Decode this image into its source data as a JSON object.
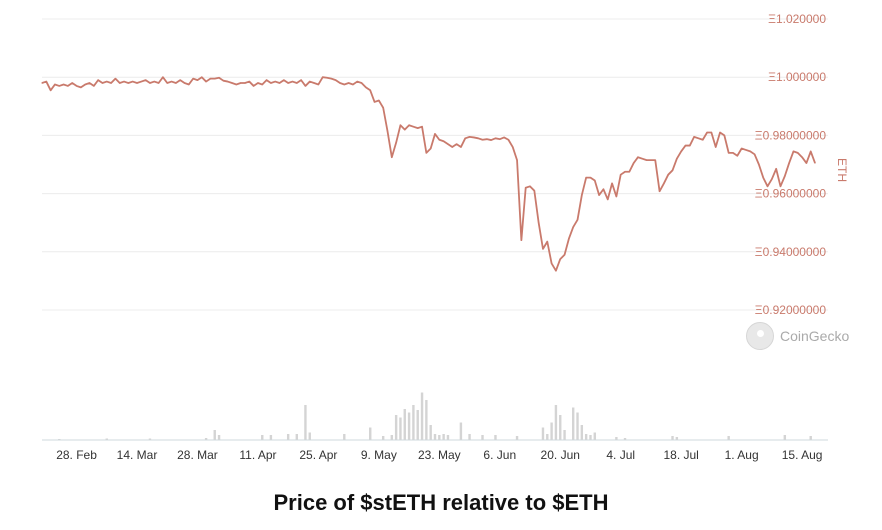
{
  "caption": "Price of $stETH relative to $ETH",
  "watermark": {
    "text": "CoinGecko",
    "icon": "coingecko-logo-icon"
  },
  "colors": {
    "line": "#c97a6c",
    "axis_label": "#c97a6c",
    "volume": "#d4d4d4",
    "grid": "#ececec",
    "axis": "#cfd8dc"
  },
  "chart_data": {
    "type": "line",
    "ylabel": "ETH",
    "ylim": [
      0.92,
      1.02
    ],
    "y_tick_values": [
      0.92,
      0.94,
      0.96,
      0.98,
      1.0,
      1.02
    ],
    "y_tick_labels": [
      "Ξ0.92000000",
      "Ξ0.94000000",
      "Ξ0.96000000",
      "Ξ0.98000000",
      "Ξ1.000000",
      "Ξ1.020000"
    ],
    "x_range": [
      "2022-02-20",
      "2022-08-21"
    ],
    "x_ticks": [
      "28. Feb",
      "14. Mar",
      "28. Mar",
      "11. Apr",
      "25. Apr",
      "9. May",
      "23. May",
      "6. Jun",
      "20. Jun",
      "4. Jul",
      "18. Jul",
      "1. Aug",
      "15. Aug"
    ],
    "grid": true,
    "series": [
      {
        "values": [
          [
            "2022-02-20",
            0.998
          ],
          [
            "2022-02-21",
            0.9985
          ],
          [
            "2022-02-22",
            0.9955
          ],
          [
            "2022-02-23",
            0.9975
          ],
          [
            "2022-02-24",
            0.997
          ],
          [
            "2022-02-25",
            0.9975
          ],
          [
            "2022-02-26",
            0.997
          ],
          [
            "2022-02-27",
            0.998
          ],
          [
            "2022-02-28",
            0.997
          ],
          [
            "2022-03-01",
            0.9965
          ],
          [
            "2022-03-02",
            0.9975
          ],
          [
            "2022-03-03",
            0.998
          ],
          [
            "2022-03-04",
            0.997
          ],
          [
            "2022-03-05",
            0.999
          ],
          [
            "2022-03-06",
            0.998
          ],
          [
            "2022-03-07",
            0.9985
          ],
          [
            "2022-03-08",
            0.998
          ],
          [
            "2022-03-09",
            0.9995
          ],
          [
            "2022-03-10",
            0.998
          ],
          [
            "2022-03-11",
            0.9985
          ],
          [
            "2022-03-12",
            0.998
          ],
          [
            "2022-03-13",
            0.9985
          ],
          [
            "2022-03-14",
            0.998
          ],
          [
            "2022-03-15",
            0.9985
          ],
          [
            "2022-03-16",
            0.999
          ],
          [
            "2022-03-17",
            0.998
          ],
          [
            "2022-03-18",
            0.9985
          ],
          [
            "2022-03-19",
            0.998
          ],
          [
            "2022-03-20",
            1.0
          ],
          [
            "2022-03-21",
            0.998
          ],
          [
            "2022-03-22",
            0.9985
          ],
          [
            "2022-03-23",
            0.998
          ],
          [
            "2022-03-24",
            0.999
          ],
          [
            "2022-03-25",
            0.998
          ],
          [
            "2022-03-26",
            0.9975
          ],
          [
            "2022-03-27",
            0.9995
          ],
          [
            "2022-03-28",
            0.999
          ],
          [
            "2022-03-29",
            1.0
          ],
          [
            "2022-03-30",
            0.9985
          ],
          [
            "2022-03-31",
            0.9995
          ],
          [
            "2022-04-01",
            0.9995
          ],
          [
            "2022-04-02",
            0.9998
          ],
          [
            "2022-04-03",
            0.9988
          ],
          [
            "2022-04-04",
            0.9985
          ],
          [
            "2022-04-05",
            0.998
          ],
          [
            "2022-04-06",
            0.9975
          ],
          [
            "2022-04-07",
            0.998
          ],
          [
            "2022-04-08",
            0.998
          ],
          [
            "2022-04-09",
            0.9985
          ],
          [
            "2022-04-10",
            0.997
          ],
          [
            "2022-04-11",
            0.998
          ],
          [
            "2022-04-12",
            0.9975
          ],
          [
            "2022-04-13",
            0.999
          ],
          [
            "2022-04-14",
            0.998
          ],
          [
            "2022-04-15",
            0.9985
          ],
          [
            "2022-04-16",
            0.998
          ],
          [
            "2022-04-17",
            0.999
          ],
          [
            "2022-04-18",
            0.998
          ],
          [
            "2022-04-19",
            0.9985
          ],
          [
            "2022-04-20",
            0.998
          ],
          [
            "2022-04-21",
            0.999
          ],
          [
            "2022-04-22",
            0.997
          ],
          [
            "2022-04-23",
            0.9985
          ],
          [
            "2022-04-24",
            0.998
          ],
          [
            "2022-04-25",
            0.9975
          ],
          [
            "2022-04-26",
            1.0
          ],
          [
            "2022-04-27",
            0.9998
          ],
          [
            "2022-04-28",
            0.9995
          ],
          [
            "2022-04-29",
            0.999
          ],
          [
            "2022-04-30",
            0.998
          ],
          [
            "2022-05-01",
            0.9975
          ],
          [
            "2022-05-02",
            0.998
          ],
          [
            "2022-05-03",
            0.9975
          ],
          [
            "2022-05-04",
            0.9985
          ],
          [
            "2022-05-05",
            0.998
          ],
          [
            "2022-05-06",
            0.9965
          ],
          [
            "2022-05-07",
            0.9955
          ],
          [
            "2022-05-08",
            0.9915
          ],
          [
            "2022-05-09",
            0.992
          ],
          [
            "2022-05-10",
            0.9895
          ],
          [
            "2022-05-11",
            0.9815
          ],
          [
            "2022-05-12",
            0.9725
          ],
          [
            "2022-05-13",
            0.9775
          ],
          [
            "2022-05-14",
            0.9835
          ],
          [
            "2022-05-15",
            0.982
          ],
          [
            "2022-05-16",
            0.9835
          ],
          [
            "2022-05-17",
            0.983
          ],
          [
            "2022-05-18",
            0.9825
          ],
          [
            "2022-05-19",
            0.983
          ],
          [
            "2022-05-20",
            0.974
          ],
          [
            "2022-05-21",
            0.9755
          ],
          [
            "2022-05-22",
            0.9805
          ],
          [
            "2022-05-23",
            0.9785
          ],
          [
            "2022-05-24",
            0.978
          ],
          [
            "2022-05-25",
            0.977
          ],
          [
            "2022-05-26",
            0.976
          ],
          [
            "2022-05-27",
            0.977
          ],
          [
            "2022-05-28",
            0.976
          ],
          [
            "2022-05-29",
            0.979
          ],
          [
            "2022-05-30",
            0.9795
          ],
          [
            "2022-05-31",
            0.9793
          ],
          [
            "2022-06-01",
            0.979
          ],
          [
            "2022-06-02",
            0.9785
          ],
          [
            "2022-06-03",
            0.9787
          ],
          [
            "2022-06-04",
            0.9784
          ],
          [
            "2022-06-05",
            0.979
          ],
          [
            "2022-06-06",
            0.9787
          ],
          [
            "2022-06-07",
            0.9793
          ],
          [
            "2022-06-08",
            0.9785
          ],
          [
            "2022-06-09",
            0.976
          ],
          [
            "2022-06-10",
            0.9715
          ],
          [
            "2022-06-11",
            0.944
          ],
          [
            "2022-06-12",
            0.962
          ],
          [
            "2022-06-13",
            0.9625
          ],
          [
            "2022-06-14",
            0.961
          ],
          [
            "2022-06-15",
            0.95
          ],
          [
            "2022-06-16",
            0.941
          ],
          [
            "2022-06-17",
            0.9435
          ],
          [
            "2022-06-18",
            0.936
          ],
          [
            "2022-06-19",
            0.9335
          ],
          [
            "2022-06-20",
            0.9375
          ],
          [
            "2022-06-21",
            0.939
          ],
          [
            "2022-06-22",
            0.9445
          ],
          [
            "2022-06-23",
            0.9485
          ],
          [
            "2022-06-24",
            0.951
          ],
          [
            "2022-06-25",
            0.9595
          ],
          [
            "2022-06-26",
            0.9655
          ],
          [
            "2022-06-27",
            0.9655
          ],
          [
            "2022-06-28",
            0.9645
          ],
          [
            "2022-06-29",
            0.9595
          ],
          [
            "2022-06-30",
            0.9615
          ],
          [
            "2022-07-01",
            0.958
          ],
          [
            "2022-07-02",
            0.9635
          ],
          [
            "2022-07-03",
            0.959
          ],
          [
            "2022-07-04",
            0.9665
          ],
          [
            "2022-07-05",
            0.9675
          ],
          [
            "2022-07-06",
            0.9675
          ],
          [
            "2022-07-07",
            0.9705
          ],
          [
            "2022-07-08",
            0.9725
          ],
          [
            "2022-07-09",
            0.972
          ],
          [
            "2022-07-10",
            0.9715
          ],
          [
            "2022-07-11",
            0.9715
          ],
          [
            "2022-07-12",
            0.9715
          ],
          [
            "2022-07-13",
            0.9608
          ],
          [
            "2022-07-14",
            0.9635
          ],
          [
            "2022-07-15",
            0.9665
          ],
          [
            "2022-07-16",
            0.968
          ],
          [
            "2022-07-17",
            0.972
          ],
          [
            "2022-07-18",
            0.9745
          ],
          [
            "2022-07-19",
            0.9765
          ],
          [
            "2022-07-20",
            0.9765
          ],
          [
            "2022-07-21",
            0.9795
          ],
          [
            "2022-07-22",
            0.979
          ],
          [
            "2022-07-23",
            0.9785
          ],
          [
            "2022-07-24",
            0.981
          ],
          [
            "2022-07-25",
            0.981
          ],
          [
            "2022-07-26",
            0.976
          ],
          [
            "2022-07-27",
            0.981
          ],
          [
            "2022-07-28",
            0.98
          ],
          [
            "2022-07-29",
            0.974
          ],
          [
            "2022-07-30",
            0.974
          ],
          [
            "2022-07-31",
            0.973
          ],
          [
            "2022-08-01",
            0.9755
          ],
          [
            "2022-08-02",
            0.975
          ],
          [
            "2022-08-03",
            0.9745
          ],
          [
            "2022-08-04",
            0.9735
          ],
          [
            "2022-08-05",
            0.97
          ],
          [
            "2022-08-06",
            0.9655
          ],
          [
            "2022-08-07",
            0.9625
          ],
          [
            "2022-08-08",
            0.965
          ],
          [
            "2022-08-09",
            0.9685
          ],
          [
            "2022-08-10",
            0.9625
          ],
          [
            "2022-08-11",
            0.966
          ],
          [
            "2022-08-12",
            0.9705
          ],
          [
            "2022-08-13",
            0.9745
          ],
          [
            "2022-08-14",
            0.974
          ],
          [
            "2022-08-15",
            0.9725
          ],
          [
            "2022-08-16",
            0.9705
          ],
          [
            "2022-08-17",
            0.9745
          ],
          [
            "2022-08-18",
            0.9705
          ]
        ]
      }
    ],
    "volume_bars": {
      "description_of_values": "relative trading volume, arbitrary units (no volume axis printed)",
      "values": [
        [
          "2022-02-24",
          0.02
        ],
        [
          "2022-03-07",
          0.03
        ],
        [
          "2022-03-17",
          0.03
        ],
        [
          "2022-03-30",
          0.04
        ],
        [
          "2022-04-01",
          0.2
        ],
        [
          "2022-04-02",
          0.1
        ],
        [
          "2022-04-12",
          0.1
        ],
        [
          "2022-04-14",
          0.1
        ],
        [
          "2022-04-18",
          0.12
        ],
        [
          "2022-04-20",
          0.12
        ],
        [
          "2022-04-22",
          0.7
        ],
        [
          "2022-04-23",
          0.15
        ],
        [
          "2022-05-01",
          0.12
        ],
        [
          "2022-05-07",
          0.25
        ],
        [
          "2022-05-10",
          0.08
        ],
        [
          "2022-05-12",
          0.1
        ],
        [
          "2022-05-13",
          0.5
        ],
        [
          "2022-05-14",
          0.45
        ],
        [
          "2022-05-15",
          0.62
        ],
        [
          "2022-05-16",
          0.55
        ],
        [
          "2022-05-17",
          0.7
        ],
        [
          "2022-05-18",
          0.6
        ],
        [
          "2022-05-19",
          0.95
        ],
        [
          "2022-05-20",
          0.8
        ],
        [
          "2022-05-21",
          0.3
        ],
        [
          "2022-05-22",
          0.12
        ],
        [
          "2022-05-23",
          0.1
        ],
        [
          "2022-05-24",
          0.12
        ],
        [
          "2022-05-25",
          0.1
        ],
        [
          "2022-05-28",
          0.35
        ],
        [
          "2022-05-30",
          0.12
        ],
        [
          "2022-06-02",
          0.1
        ],
        [
          "2022-06-05",
          0.1
        ],
        [
          "2022-06-10",
          0.08
        ],
        [
          "2022-06-16",
          0.25
        ],
        [
          "2022-06-17",
          0.12
        ],
        [
          "2022-06-18",
          0.35
        ],
        [
          "2022-06-19",
          0.7
        ],
        [
          "2022-06-20",
          0.5
        ],
        [
          "2022-06-21",
          0.2
        ],
        [
          "2022-06-23",
          0.65
        ],
        [
          "2022-06-24",
          0.55
        ],
        [
          "2022-06-25",
          0.3
        ],
        [
          "2022-06-26",
          0.12
        ],
        [
          "2022-06-27",
          0.1
        ],
        [
          "2022-06-28",
          0.15
        ],
        [
          "2022-07-03",
          0.06
        ],
        [
          "2022-07-05",
          0.04
        ],
        [
          "2022-07-16",
          0.08
        ],
        [
          "2022-07-17",
          0.06
        ],
        [
          "2022-07-29",
          0.08
        ],
        [
          "2022-08-11",
          0.1
        ],
        [
          "2022-08-17",
          0.08
        ]
      ]
    }
  }
}
